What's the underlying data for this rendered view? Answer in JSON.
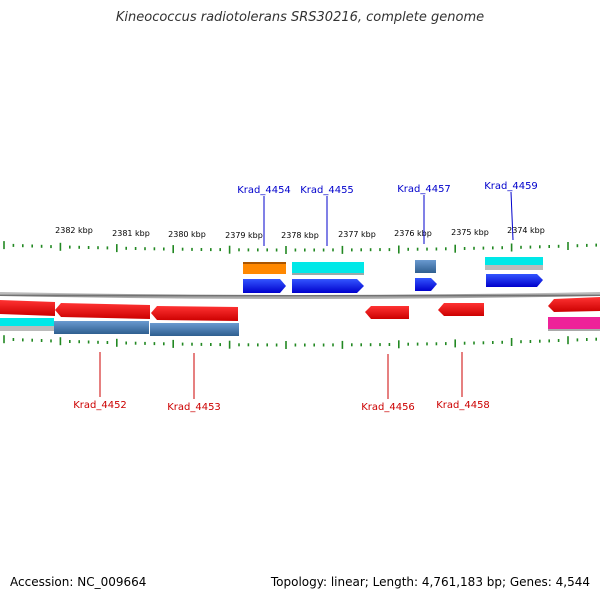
{
  "title": "Kineococcus radiotolerans SRS30216, complete genome",
  "axis": {
    "ticks": [
      {
        "kbp": 2382,
        "label": "2382 kbp"
      },
      {
        "kbp": 2381,
        "label": "2381 kbp"
      },
      {
        "kbp": 2380,
        "label": "2380 kbp"
      },
      {
        "kbp": 2379,
        "label": "2379 kbp"
      },
      {
        "kbp": 2378,
        "label": "2378 kbp"
      },
      {
        "kbp": 2377,
        "label": "2377 kbp"
      },
      {
        "kbp": 2376,
        "label": "2376 kbp"
      },
      {
        "kbp": 2375,
        "label": "2375 kbp"
      },
      {
        "kbp": 2374,
        "label": "2374 kbp"
      }
    ]
  },
  "genes_top": [
    {
      "id": "Krad_4454",
      "color": "#0000cc"
    },
    {
      "id": "Krad_4455",
      "color": "#0000cc"
    },
    {
      "id": "Krad_4457",
      "color": "#0000cc"
    },
    {
      "id": "Krad_4459",
      "color": "#0000cc"
    }
  ],
  "genes_bottom": [
    {
      "id": "Krad_4452",
      "color": "#cc0000"
    },
    {
      "id": "Krad_4453",
      "color": "#cc0000"
    },
    {
      "id": "Krad_4456",
      "color": "#cc0000"
    },
    {
      "id": "Krad_4458",
      "color": "#cc0000"
    }
  ],
  "colors": {
    "forward_cds": "#0022dd",
    "reverse_cds": "#dd1111",
    "tick": "#228822",
    "backbone": "#888888",
    "orange": "#ff8800",
    "cyan": "#00e8e8",
    "steel": "#4a7fb0",
    "magenta": "#ee2299"
  },
  "footer": {
    "accession": "Accession: NC_009664",
    "stats": "Topology: linear; Length: 4,761,183 bp; Genes: 4,544"
  }
}
